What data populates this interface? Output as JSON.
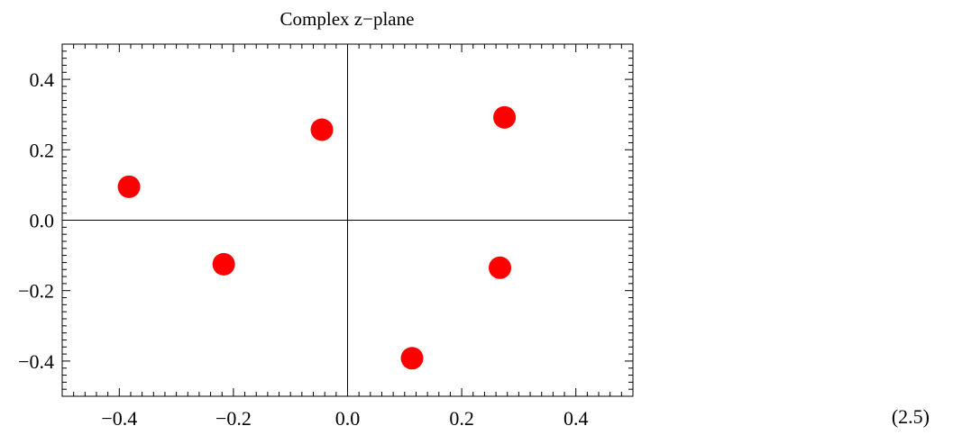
{
  "chart_data": {
    "type": "scatter",
    "title": "Complex z−plane",
    "xlabel": "",
    "ylabel": "",
    "xlim": [
      -0.5,
      0.5
    ],
    "ylim": [
      -0.5,
      0.5
    ],
    "x_ticks": [
      -0.4,
      -0.2,
      0.0,
      0.2,
      0.4
    ],
    "y_ticks": [
      -0.4,
      -0.2,
      0.0,
      0.2,
      0.4
    ],
    "x_tick_labels": [
      "−0.4",
      "−0.2",
      "0.0",
      "0.2",
      "0.4"
    ],
    "y_tick_labels": [
      "−0.4",
      "−0.2",
      "0.0",
      "0.2",
      "0.4"
    ],
    "marker_color": "#ff0000",
    "points": [
      {
        "x": -0.383,
        "y": 0.095
      },
      {
        "x": -0.217,
        "y": -0.125
      },
      {
        "x": -0.045,
        "y": 0.257
      },
      {
        "x": 0.113,
        "y": -0.392
      },
      {
        "x": 0.267,
        "y": -0.135
      },
      {
        "x": 0.275,
        "y": 0.292
      }
    ]
  },
  "equation_number": "(2.5)"
}
